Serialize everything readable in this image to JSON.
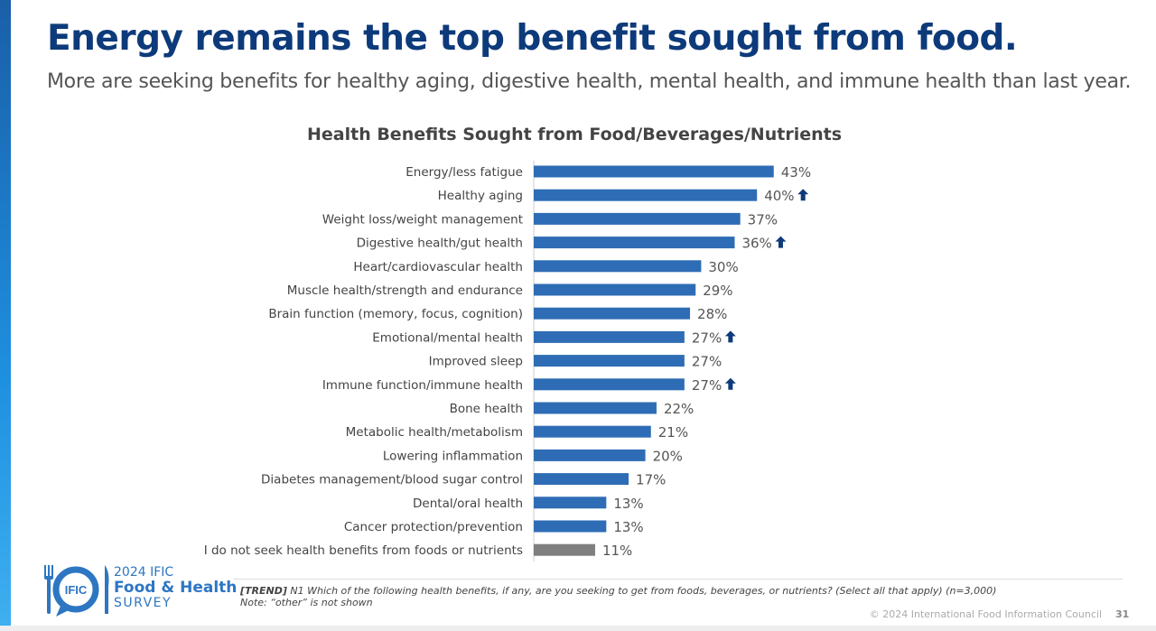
{
  "title": "Energy remains the top benefit sought from food.",
  "subtitle": "More are seeking benefits for healthy aging, digestive health, mental health, and immune health than last year.",
  "chart_data": {
    "type": "bar",
    "orientation": "horizontal",
    "title": "Health Benefits Sought from Food/Beverages/Nutrients",
    "categories": [
      "Energy/less fatigue",
      "Healthy aging",
      "Weight loss/weight management",
      "Digestive health/gut health",
      "Heart/cardiovascular health",
      "Muscle health/strength and endurance",
      "Brain function (memory, focus, cognition)",
      "Emotional/mental health",
      "Improved sleep",
      "Immune function/immune health",
      "Bone health",
      "Metabolic health/metabolism",
      "Lowering inflammation",
      "Diabetes management/blood sugar control",
      "Dental/oral health",
      "Cancer protection/prevention",
      "I do not seek health benefits from foods or nutrients"
    ],
    "values": [
      43,
      40,
      37,
      36,
      30,
      29,
      28,
      27,
      27,
      27,
      22,
      21,
      20,
      17,
      13,
      13,
      11
    ],
    "labels": [
      "43%",
      "40%",
      "37%",
      "36%",
      "30%",
      "29%",
      "28%",
      "27%",
      "27%",
      "27%",
      "22%",
      "21%",
      "20%",
      "17%",
      "13%",
      "13%",
      "11%"
    ],
    "trend_up": [
      false,
      true,
      false,
      true,
      false,
      false,
      false,
      true,
      false,
      true,
      false,
      false,
      false,
      false,
      false,
      false,
      false
    ],
    "colors": {
      "bar": "#2e6db5",
      "none_bar": "#7f7f7f",
      "arrow": "#0d3a7a"
    },
    "unit": "%"
  },
  "logo": {
    "line1": "2024 IFIC",
    "line2": "Food & Health",
    "line3": "SURVEY",
    "badge": "IFIC"
  },
  "footnote": {
    "tag": "[TREND]",
    "question": " N1 Which of the following health benefits, if any, are you seeking to get from foods, beverages, or nutrients? (Select all that apply) (n=3,000)",
    "note": "Note: “other” is not shown"
  },
  "copyright": "© 2024 International Food Information Council",
  "page_number": "31"
}
